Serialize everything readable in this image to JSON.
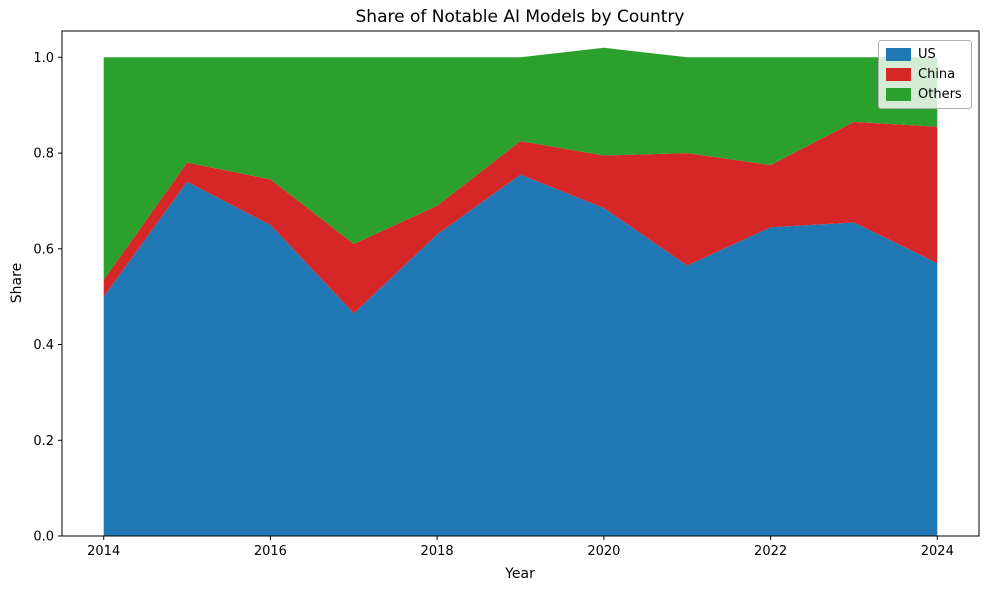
{
  "figure": {
    "title": "Share of Notable AI Models by Country",
    "xlabel": "Year",
    "ylabel": "Share"
  },
  "chart_data": {
    "type": "area",
    "stacked": true,
    "normalized": true,
    "title": "Share of Notable AI Models by Country",
    "xlabel": "Year",
    "ylabel": "Share",
    "x": [
      2014,
      2015,
      2016,
      2017,
      2018,
      2019,
      2020,
      2021,
      2022,
      2023,
      2024
    ],
    "series": [
      {
        "name": "US",
        "color": "#1f77b4",
        "values": [
          0.5,
          0.74,
          0.65,
          0.465,
          0.63,
          0.755,
          0.685,
          0.565,
          0.645,
          0.655,
          0.57
        ]
      },
      {
        "name": "China",
        "color": "#d62728",
        "values": [
          0.035,
          0.04,
          0.095,
          0.145,
          0.06,
          0.07,
          0.11,
          0.235,
          0.13,
          0.21,
          0.285
        ]
      },
      {
        "name": "Others",
        "color": "#2ca02c",
        "values": [
          0.465,
          0.22,
          0.255,
          0.39,
          0.31,
          0.175,
          0.225,
          0.2,
          0.225,
          0.135,
          0.145
        ]
      }
    ],
    "xlim": [
      2013.5,
      2024.5
    ],
    "ylim": [
      0,
      1.055
    ],
    "xticks": [
      2014,
      2016,
      2018,
      2020,
      2022,
      2024
    ],
    "xtick_labels": [
      "2014",
      "2016",
      "2018",
      "2020",
      "2022",
      "2024"
    ],
    "yticks": [
      0.0,
      0.2,
      0.4,
      0.6,
      0.8,
      1.0
    ],
    "ytick_labels": [
      "0.0",
      "0.2",
      "0.4",
      "0.6",
      "0.8",
      "1.0"
    ],
    "grid": false,
    "legend_position": "upper right",
    "axis_color": "#000000",
    "background_color": "#ffffff"
  }
}
